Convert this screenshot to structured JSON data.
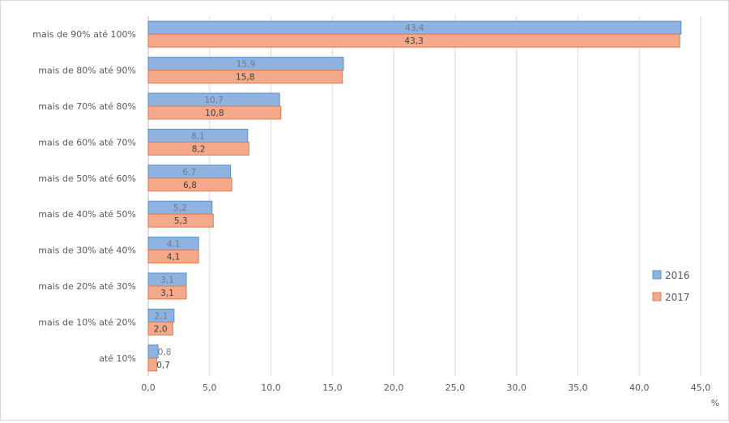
{
  "chart_data": {
    "type": "bar",
    "orientation": "horizontal",
    "categories": [
      "mais de 90% até 100%",
      "mais de 80% até 90%",
      "mais de 70% até 80%",
      "mais de 60% até 70%",
      "mais de 50% até 60%",
      "mais de 40% até 50%",
      "mais de 30% até 40%",
      "mais de 20% até 30%",
      "mais de 10% até 20%",
      "até 10%"
    ],
    "series": [
      {
        "name": "2016",
        "values": [
          43.4,
          15.9,
          10.7,
          8.1,
          6.7,
          5.2,
          4.1,
          3.1,
          2.1,
          0.8
        ],
        "labels": [
          "43,4",
          "15,9",
          "10,7",
          "8,1",
          "6,7",
          "5,2",
          "4,1",
          "3,1",
          "2,1",
          "0,8"
        ],
        "color": "#8fb3e0",
        "stroke": "#5b8fce",
        "label_color": "#6d7a8c"
      },
      {
        "name": "2017",
        "values": [
          43.3,
          15.8,
          10.8,
          8.2,
          6.8,
          5.3,
          4.1,
          3.1,
          2.0,
          0.7
        ],
        "labels": [
          "43,3",
          "15,8",
          "10,8",
          "8,2",
          "6,8",
          "5,3",
          "4,1",
          "3,1",
          "2,0",
          "0,7"
        ],
        "color": "#f4a98a",
        "stroke": "#e07b52",
        "label_color": "#404040"
      }
    ],
    "xlim": [
      0,
      45
    ],
    "ticks": [
      0,
      5,
      10,
      15,
      20,
      25,
      30,
      35,
      40,
      45
    ],
    "tick_labels": [
      "0,0",
      "5,0",
      "10,0",
      "15,0",
      "20,0",
      "25,0",
      "30,0",
      "35,0",
      "40,0",
      "45,0"
    ],
    "unit": "%",
    "grid": true,
    "legend": "right"
  }
}
